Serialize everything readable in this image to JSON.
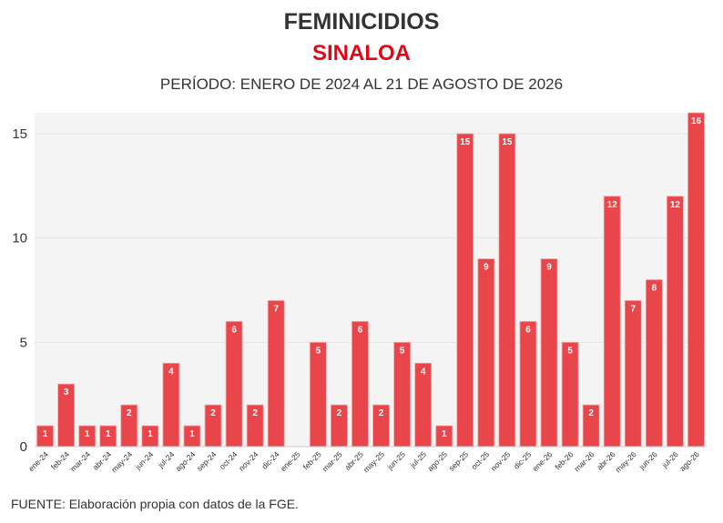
{
  "header": {
    "title": "FEMINICIDIOS",
    "subtitle": "SINALOA",
    "period": "PERÍODO: ENERO DE 2024 AL 21 DE AGOSTO DE 2026"
  },
  "footer": {
    "source": "FUENTE: Elaboración propia con datos de la FGE."
  },
  "colors": {
    "bar": "#e8464a",
    "bar_edge": "#f5a9aa",
    "subtitle": "#e30613",
    "plot_bg": "#f4f4f4"
  },
  "chart_data": {
    "type": "bar",
    "categories": [
      "ene-24",
      "feb-24",
      "mar-24",
      "abr-24",
      "may-24",
      "jun-24",
      "jul-24",
      "ago-24",
      "sep-24",
      "oct-24",
      "nov-24",
      "dic-24",
      "ene-25",
      "feb-25",
      "mar-25",
      "abr-25",
      "may-25",
      "jun-25",
      "jul-25",
      "ago-25",
      "sep-25",
      "oct-25",
      "nov-25",
      "dic-25",
      "ene-26",
      "feb-26",
      "mar-26",
      "abr-26",
      "may-26",
      "jun-26",
      "jul-26",
      "ago-26"
    ],
    "values": [
      1,
      3,
      1,
      1,
      2,
      1,
      4,
      1,
      2,
      6,
      2,
      7,
      0,
      5,
      2,
      6,
      2,
      5,
      4,
      1,
      15,
      9,
      15,
      6,
      9,
      5,
      2,
      12,
      7,
      8,
      12,
      16
    ],
    "ylim": [
      0,
      16
    ],
    "yticks": [
      0,
      5,
      10,
      15
    ],
    "grid": true,
    "legend": "none"
  }
}
